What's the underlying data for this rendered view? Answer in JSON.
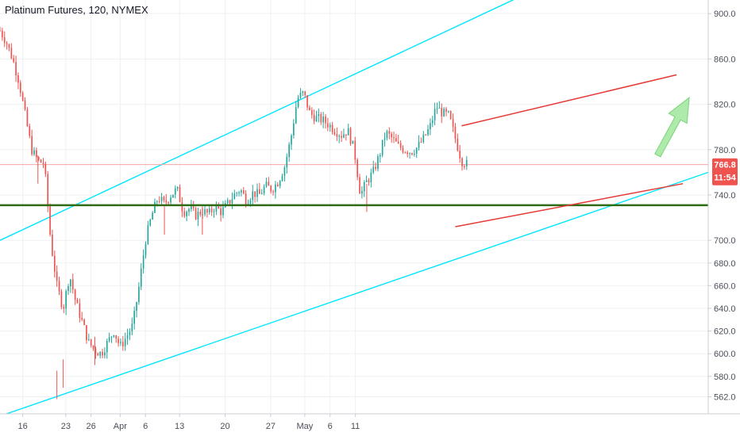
{
  "header": {
    "title": "Platinum Futures, 120, NYMEX"
  },
  "colors": {
    "up": "#26a69a",
    "down": "#ef5350",
    "channel": "#00e5ff",
    "wedge": "#e53935",
    "support": "#2e6b12",
    "arrow": "#a5e8a0",
    "last_price_line": "#f5a5a5",
    "badge": "#ef5350"
  },
  "price_badge": {
    "price": "766.8",
    "countdown": "11:54"
  },
  "chart_data": {
    "type": "candlestick",
    "y_axis": {
      "range": [
        547,
        912
      ],
      "ticks": [
        "900.0",
        "860.0",
        "820.0",
        "780.0",
        "740.0",
        "700.0",
        "680.0",
        "660.0",
        "640.0",
        "620.0",
        "600.0",
        "580.0",
        "562.0"
      ],
      "tick_values": [
        900,
        860,
        820,
        780,
        740,
        700,
        680,
        660,
        640,
        620,
        600,
        580,
        562
      ]
    },
    "x_axis": {
      "range": [
        0,
        56
      ],
      "ticks": [
        "16",
        "23",
        "26",
        "Apr",
        "6",
        "13",
        "20",
        "27",
        "May",
        "6",
        "11"
      ],
      "tick_positions": [
        1.8,
        5.2,
        7.2,
        9.5,
        11.5,
        14.2,
        17.8,
        21.4,
        24.1,
        26.1,
        28.1
      ]
    },
    "last_price": 766.8,
    "close_path": [
      [
        0,
        885
      ],
      [
        0.5,
        875
      ],
      [
        1,
        860
      ],
      [
        1.5,
        840
      ],
      [
        2,
        810
      ],
      [
        2.5,
        780
      ],
      [
        3,
        770
      ],
      [
        3.5,
        768
      ],
      [
        4,
        700
      ],
      [
        4.5,
        660
      ],
      [
        5,
        640
      ],
      [
        5.5,
        670
      ],
      [
        6,
        645
      ],
      [
        6.5,
        628
      ],
      [
        7,
        610
      ],
      [
        7.5,
        603
      ],
      [
        8,
        600
      ],
      [
        8.5,
        610
      ],
      [
        9,
        620
      ],
      [
        9.5,
        606
      ],
      [
        10,
        615
      ],
      [
        10.5,
        625
      ],
      [
        11,
        660
      ],
      [
        11.5,
        700
      ],
      [
        12,
        722
      ],
      [
        12.5,
        738
      ],
      [
        13,
        732
      ],
      [
        13.5,
        740
      ],
      [
        14,
        745
      ],
      [
        14.5,
        725
      ],
      [
        15,
        728
      ],
      [
        15.5,
        722
      ],
      [
        16,
        726
      ],
      [
        16.5,
        723
      ],
      [
        17,
        730
      ],
      [
        17.5,
        725
      ],
      [
        18,
        732
      ],
      [
        18.5,
        740
      ],
      [
        19,
        745
      ],
      [
        19.5,
        735
      ],
      [
        20,
        742
      ],
      [
        20.5,
        740
      ],
      [
        21,
        748
      ],
      [
        21.5,
        745
      ],
      [
        22,
        752
      ],
      [
        22.5,
        765
      ],
      [
        23,
        790
      ],
      [
        23.5,
        825
      ],
      [
        24,
        830
      ],
      [
        24.5,
        812
      ],
      [
        25,
        808
      ],
      [
        25.5,
        806
      ],
      [
        26,
        802
      ],
      [
        26.5,
        797
      ],
      [
        27,
        793
      ],
      [
        27.5,
        797
      ],
      [
        28,
        780
      ],
      [
        28.5,
        740
      ],
      [
        29,
        752
      ],
      [
        29.5,
        760
      ],
      [
        30,
        775
      ],
      [
        30.5,
        795
      ],
      [
        31,
        790
      ],
      [
        31.5,
        783
      ],
      [
        32,
        780
      ],
      [
        32.5,
        778
      ],
      [
        33,
        782
      ],
      [
        33.5,
        790
      ],
      [
        34,
        800
      ],
      [
        34.5,
        818
      ],
      [
        35,
        812
      ],
      [
        35.5,
        810
      ],
      [
        36,
        790
      ],
      [
        36.5,
        770
      ],
      [
        37,
        766.8
      ]
    ],
    "wicks": [
      [
        3,
        750,
        3.5,
        758
      ],
      [
        4.5,
        560
      ],
      [
        5,
        570
      ],
      [
        7.5,
        590
      ],
      [
        13,
        705
      ],
      [
        16,
        705
      ],
      [
        29,
        725
      ]
    ],
    "annotations": {
      "upper_channel_line": [
        [
          0,
          700
        ],
        [
          44,
          930
        ]
      ],
      "lower_channel_line": [
        [
          0,
          545
        ],
        [
          56,
          760
        ]
      ],
      "support_line": [
        [
          0,
          731
        ],
        [
          57,
          731
        ]
      ],
      "wedge_upper": [
        [
          36.5,
          801
        ],
        [
          53.5,
          846
        ]
      ],
      "wedge_lower": [
        [
          36,
          712
        ],
        [
          54,
          750
        ]
      ],
      "arrow": {
        "from": [
          52,
          775
        ],
        "to": [
          54.5,
          826
        ]
      }
    }
  }
}
